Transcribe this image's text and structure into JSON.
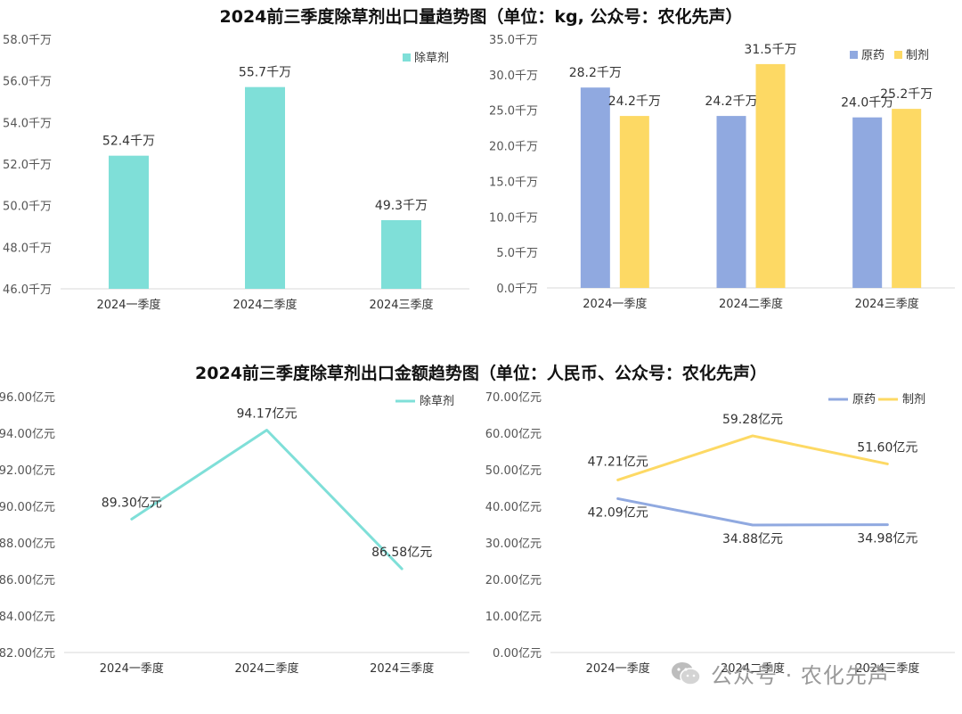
{
  "titles": {
    "quantity": "2024前三季度除草剂出口量趋势图（单位：kg, 公众号：农化先声）",
    "amount": "2024前三季度除草剂出口金额趋势图（单位：人民币、公众号：农化先声）"
  },
  "watermark": {
    "text": "公众号 · 农化先声",
    "icon": "wechat-icon"
  },
  "colors": {
    "herbicide": "#7fdfd8",
    "original": "#90a9e0",
    "formulation": "#fdd964",
    "axis": "#d9d9d9"
  },
  "chart_data": [
    {
      "id": "c1",
      "type": "bar",
      "categories": [
        "2024一季度",
        "2024二季度",
        "2024三季度"
      ],
      "series": [
        {
          "name": "除草剂",
          "values": [
            52.4,
            55.7,
            49.3
          ],
          "labels": [
            "52.4千万",
            "55.7千万",
            "49.3千万"
          ],
          "color": "#7fdfd8"
        }
      ],
      "ylim": [
        46.0,
        58.0
      ],
      "yticks": [
        46.0,
        48.0,
        50.0,
        52.0,
        54.0,
        56.0,
        58.0
      ],
      "ytick_labels": [
        "46.0千万",
        "48.0千万",
        "50.0千万",
        "52.0千万",
        "54.0千万",
        "56.0千万",
        "58.0千万"
      ],
      "legend": "top-right"
    },
    {
      "id": "c2",
      "type": "bar",
      "categories": [
        "2024一季度",
        "2024二季度",
        "2024三季度"
      ],
      "series": [
        {
          "name": "原药",
          "values": [
            28.2,
            24.2,
            24.0
          ],
          "labels": [
            "28.2千万",
            "24.2千万",
            "24.0千万"
          ],
          "color": "#90a9e0"
        },
        {
          "name": "制剂",
          "values": [
            24.2,
            31.5,
            25.2
          ],
          "labels": [
            "24.2千万",
            "31.5千万",
            "25.2千万"
          ],
          "color": "#fdd964"
        }
      ],
      "ylim": [
        0.0,
        35.0
      ],
      "yticks": [
        0,
        5,
        10,
        15,
        20,
        25,
        30,
        35
      ],
      "ytick_labels": [
        "0.0千万",
        "5.0千万",
        "10.0千万",
        "15.0千万",
        "20.0千万",
        "25.0千万",
        "30.0千万",
        "35.0千万"
      ],
      "legend": "top-right"
    },
    {
      "id": "c3",
      "type": "line",
      "categories": [
        "2024一季度",
        "2024二季度",
        "2024三季度"
      ],
      "series": [
        {
          "name": "除草剂",
          "values": [
            89.3,
            94.17,
            86.58
          ],
          "labels": [
            "89.30亿元",
            "94.17亿元",
            "86.58亿元"
          ],
          "color": "#7fdfd8"
        }
      ],
      "ylim": [
        82.0,
        96.0
      ],
      "yticks": [
        82,
        84,
        86,
        88,
        90,
        92,
        94,
        96
      ],
      "ytick_labels": [
        "82.00亿元",
        "84.00亿元",
        "86.00亿元",
        "88.00亿元",
        "90.00亿元",
        "92.00亿元",
        "94.00亿元",
        "96.00亿元"
      ],
      "legend": "top-right"
    },
    {
      "id": "c4",
      "type": "line",
      "categories": [
        "2024一季度",
        "2024二季度",
        "2024三季度"
      ],
      "series": [
        {
          "name": "原药",
          "values": [
            42.09,
            34.88,
            34.98
          ],
          "labels": [
            "42.09亿元",
            "34.88亿元",
            "34.98亿元"
          ],
          "color": "#90a9e0"
        },
        {
          "name": "制剂",
          "values": [
            47.21,
            59.28,
            51.6
          ],
          "labels": [
            "47.21亿元",
            "59.28亿元",
            "51.60亿元"
          ],
          "color": "#fdd964"
        }
      ],
      "ylim": [
        0.0,
        70.0
      ],
      "yticks": [
        0,
        10,
        20,
        30,
        40,
        50,
        60,
        70
      ],
      "ytick_labels": [
        "0.00亿元",
        "10.00亿元",
        "20.00亿元",
        "30.00亿元",
        "40.00亿元",
        "50.00亿元",
        "60.00亿元",
        "70.00亿元"
      ],
      "legend": "top-right"
    }
  ]
}
